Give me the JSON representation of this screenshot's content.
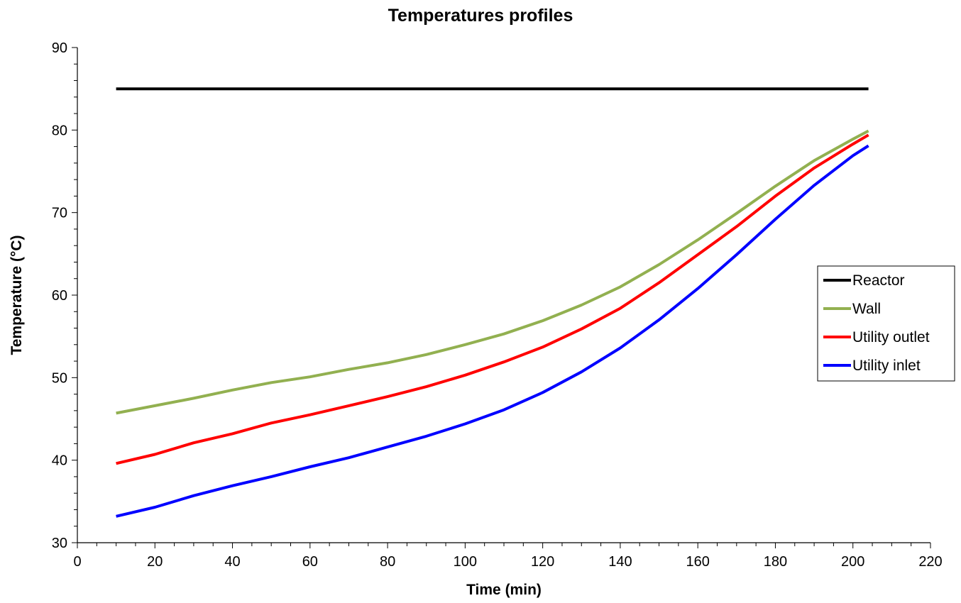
{
  "chart_data": {
    "type": "line",
    "title": "Temperatures profiles",
    "xlabel": "Time (min)",
    "ylabel": "Temperature (°C)",
    "xlim": [
      0,
      220
    ],
    "ylim": [
      30,
      90
    ],
    "x_ticks": [
      "0",
      "20",
      "40",
      "60",
      "80",
      "100",
      "120",
      "140",
      "160",
      "180",
      "200",
      "220"
    ],
    "y_ticks": [
      "30",
      "40",
      "50",
      "60",
      "70",
      "80",
      "90"
    ],
    "grid": false,
    "legend_position": "right",
    "x": [
      10,
      20,
      30,
      40,
      50,
      60,
      70,
      80,
      90,
      100,
      110,
      120,
      130,
      140,
      150,
      160,
      170,
      180,
      190,
      200,
      204
    ],
    "series": [
      {
        "name": "Reactor",
        "color": "#000000",
        "values": [
          85,
          85,
          85,
          85,
          85,
          85,
          85,
          85,
          85,
          85,
          85,
          85,
          85,
          85,
          85,
          85,
          85,
          85,
          85,
          85,
          85
        ]
      },
      {
        "name": "Wall",
        "color": "#92b050",
        "values": [
          45.7,
          46.6,
          47.5,
          48.5,
          49.4,
          50.1,
          51.0,
          51.8,
          52.8,
          54.0,
          55.3,
          56.9,
          58.8,
          61.0,
          63.7,
          66.7,
          69.9,
          73.2,
          76.3,
          78.9,
          79.9
        ]
      },
      {
        "name": "Utility outlet",
        "color": "#ff0000",
        "values": [
          39.6,
          40.7,
          42.1,
          43.2,
          44.5,
          45.5,
          46.6,
          47.7,
          48.9,
          50.3,
          51.9,
          53.7,
          55.9,
          58.4,
          61.5,
          64.9,
          68.3,
          72.0,
          75.4,
          78.3,
          79.4
        ]
      },
      {
        "name": "Utility inlet",
        "color": "#0000ff",
        "values": [
          33.2,
          34.3,
          35.7,
          36.9,
          38.0,
          39.2,
          40.3,
          41.6,
          42.9,
          44.4,
          46.1,
          48.2,
          50.7,
          53.6,
          57.0,
          60.8,
          64.9,
          69.2,
          73.3,
          76.9,
          78.1
        ]
      }
    ]
  }
}
